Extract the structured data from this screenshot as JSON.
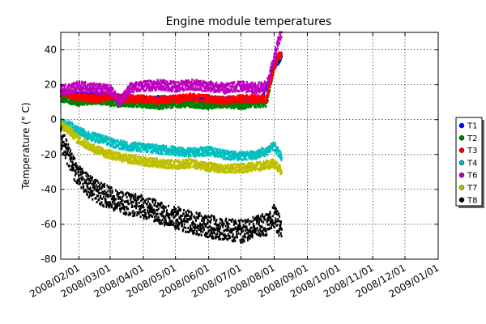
{
  "chart_data": {
    "type": "scatter",
    "title": "Engine module temperatures",
    "xlabel": "",
    "ylabel": "Temperature (° C)",
    "x_axis": "date",
    "xlim": [
      "2008-01-15",
      "2009-01-01"
    ],
    "ylim": [
      -80,
      50
    ],
    "x_ticks": [
      "2008/02/01",
      "2008/03/01",
      "2008/04/01",
      "2008/05/01",
      "2008/06/01",
      "2008/07/01",
      "2008/08/01",
      "2008/09/01",
      "2008/10/01",
      "2008/11/01",
      "2008/12/01",
      "2009/01/01"
    ],
    "y_ticks": [
      -80,
      -60,
      -40,
      -20,
      0,
      20,
      40
    ],
    "grid": true,
    "legend_position": "right",
    "series": [
      {
        "name": "T1",
        "color": "#0000ff",
        "x": [
          "2008-01-15",
          "2008-02-01",
          "2008-03-01",
          "2008-04-01",
          "2008-05-01",
          "2008-06-01",
          "2008-07-01",
          "2008-07-20",
          "2008-08-01",
          "2008-08-08"
        ],
        "y": [
          15,
          14,
          13,
          12,
          12,
          12,
          11,
          12,
          30,
          36
        ]
      },
      {
        "name": "T2",
        "color": "#008000",
        "x": [
          "2008-01-15",
          "2008-01-25",
          "2008-02-01",
          "2008-02-15",
          "2008-03-01",
          "2008-03-15",
          "2008-04-01",
          "2008-04-15",
          "2008-05-01",
          "2008-05-15",
          "2008-06-01",
          "2008-06-15",
          "2008-07-01",
          "2008-07-15",
          "2008-07-25",
          "2008-08-01",
          "2008-08-05",
          "2008-08-08"
        ],
        "y": [
          12,
          11,
          10,
          11,
          10,
          9,
          9,
          8,
          9,
          9,
          8,
          9,
          8,
          9,
          9,
          30,
          36,
          37
        ]
      },
      {
        "name": "T3",
        "color": "#ff0000",
        "x": [
          "2008-01-15",
          "2008-01-25",
          "2008-02-01",
          "2008-02-15",
          "2008-03-01",
          "2008-03-15",
          "2008-04-01",
          "2008-04-15",
          "2008-05-01",
          "2008-05-15",
          "2008-06-01",
          "2008-06-15",
          "2008-07-01",
          "2008-07-15",
          "2008-07-25",
          "2008-08-01",
          "2008-08-05",
          "2008-08-08"
        ],
        "y": [
          16,
          14,
          13,
          12,
          13,
          12,
          12,
          11,
          12,
          13,
          12,
          11,
          12,
          12,
          12,
          30,
          37,
          38
        ]
      },
      {
        "name": "T4",
        "color": "#00bfbf",
        "x": [
          "2008-01-15",
          "2008-01-25",
          "2008-02-01",
          "2008-02-10",
          "2008-02-20",
          "2008-03-01",
          "2008-03-15",
          "2008-04-01",
          "2008-04-15",
          "2008-05-01",
          "2008-05-15",
          "2008-06-01",
          "2008-06-15",
          "2008-07-01",
          "2008-07-15",
          "2008-07-25",
          "2008-08-01",
          "2008-08-08"
        ],
        "y": [
          -2,
          -4,
          -7,
          -9,
          -11,
          -13,
          -15,
          -16,
          -17,
          -18,
          -19,
          -18,
          -20,
          -21,
          -20,
          -18,
          -15,
          -22
        ]
      },
      {
        "name": "T6",
        "color": "#bf00bf",
        "x": [
          "2008-01-15",
          "2008-01-25",
          "2008-02-01",
          "2008-02-15",
          "2008-03-01",
          "2008-03-10",
          "2008-03-20",
          "2008-04-01",
          "2008-04-15",
          "2008-05-01",
          "2008-05-15",
          "2008-06-01",
          "2008-06-15",
          "2008-07-01",
          "2008-07-15",
          "2008-07-25",
          "2008-08-01",
          "2008-08-05",
          "2008-08-08"
        ],
        "y": [
          17,
          18,
          19,
          18,
          17,
          10,
          18,
          19,
          20,
          19,
          20,
          19,
          18,
          19,
          18,
          19,
          35,
          45,
          50
        ]
      },
      {
        "name": "T7",
        "color": "#bfbf00",
        "x": [
          "2008-01-15",
          "2008-01-25",
          "2008-02-01",
          "2008-02-10",
          "2008-02-20",
          "2008-03-01",
          "2008-03-15",
          "2008-04-01",
          "2008-04-15",
          "2008-05-01",
          "2008-05-15",
          "2008-06-01",
          "2008-06-15",
          "2008-07-01",
          "2008-07-15",
          "2008-07-25",
          "2008-08-01",
          "2008-08-08"
        ],
        "y": [
          -3,
          -7,
          -12,
          -15,
          -18,
          -20,
          -22,
          -24,
          -25,
          -26,
          -25,
          -27,
          -28,
          -28,
          -27,
          -26,
          -25,
          -30
        ]
      },
      {
        "name": "T8",
        "color": "#000000",
        "x": [
          "2008-01-15",
          "2008-01-25",
          "2008-02-01",
          "2008-02-10",
          "2008-02-20",
          "2008-03-01",
          "2008-03-15",
          "2008-04-01",
          "2008-04-15",
          "2008-05-01",
          "2008-05-15",
          "2008-06-01",
          "2008-06-15",
          "2008-07-01",
          "2008-07-15",
          "2008-07-25",
          "2008-08-01",
          "2008-08-08"
        ],
        "y": [
          -10,
          -25,
          -33,
          -38,
          -42,
          -45,
          -48,
          -50,
          -53,
          -56,
          -59,
          -61,
          -63,
          -64,
          -62,
          -60,
          -55,
          -63
        ]
      }
    ]
  }
}
